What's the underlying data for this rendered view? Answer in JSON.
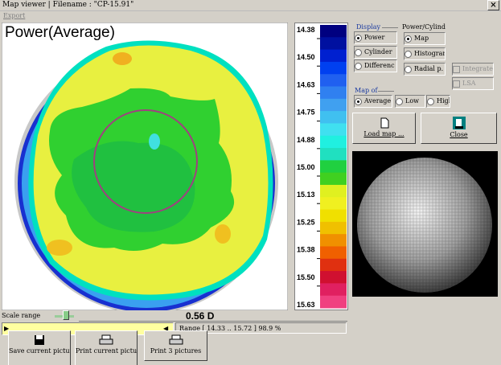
{
  "window": {
    "title": "Map viewer | Filename : \"CP-15.91\"",
    "close": "×"
  },
  "menu": [
    "Export"
  ],
  "map": {
    "title": "Power(Average)"
  },
  "scale": {
    "labels": [
      "14.38",
      "14.50",
      "14.63",
      "14.75",
      "14.88",
      "15.00",
      "15.13",
      "15.25",
      "15.38",
      "15.50",
      "15.63"
    ]
  },
  "display": {
    "label": "Display",
    "options": [
      "Power",
      "Cylinder",
      "Differenc"
    ]
  },
  "power_cylinder": {
    "label": "Power/Cylind",
    "options": [
      "Map",
      "Histograr",
      "Radial p."
    ]
  },
  "checkboxes": [
    "Integrate",
    "LSA"
  ],
  "map_of": {
    "label": "Map of",
    "options": [
      "Average",
      "Low",
      "High"
    ]
  },
  "buttons": {
    "load": "Load map ...",
    "close": "Close",
    "save": "Save current picture",
    "print_current": "Print current picture",
    "print_three": "Print 3 pictures"
  },
  "scale_range": {
    "label": "Scale range",
    "value": "0.56 D",
    "range": "Range [ 14.33 .. 15.72 ] 98.9 %"
  }
}
